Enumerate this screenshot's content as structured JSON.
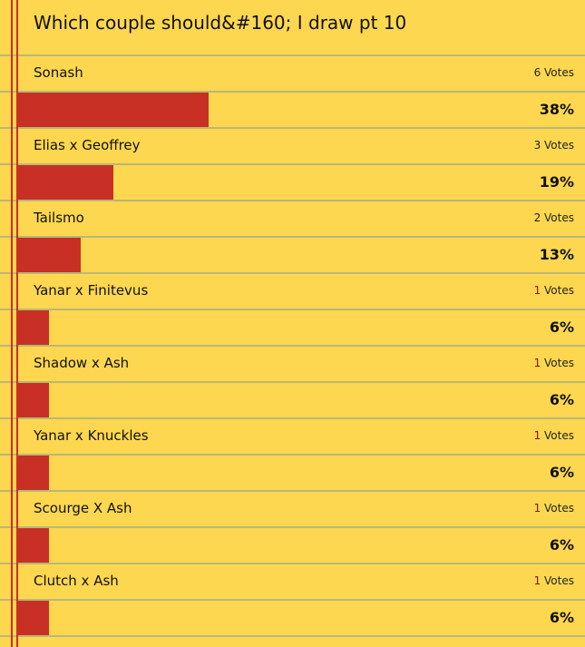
{
  "poll": {
    "title": "Which couple should&#160; I draw pt 10",
    "votes_suffix": "Votes",
    "options": [
      {
        "label": "Sonash",
        "votes": "6",
        "percent": "38%",
        "fraction": 0.375
      },
      {
        "label": "Elias x Geoffrey",
        "votes": "3",
        "percent": "19%",
        "fraction": 0.1875
      },
      {
        "label": "Tailsmo",
        "votes": "2",
        "percent": "13%",
        "fraction": 0.125
      },
      {
        "label": "Yanar x Finitevus",
        "votes": "1",
        "percent": "6%",
        "fraction": 0.0625
      },
      {
        "label": "Shadow x Ash",
        "votes": "1",
        "percent": "6%",
        "fraction": 0.0625
      },
      {
        "label": "Yanar x Knuckles",
        "votes": "1",
        "percent": "6%",
        "fraction": 0.0625
      },
      {
        "label": "Scourge X Ash",
        "votes": "1",
        "percent": "6%",
        "fraction": 0.0625
      },
      {
        "label": "Clutch x Ash",
        "votes": "1",
        "percent": "6%",
        "fraction": 0.0625
      }
    ]
  },
  "colors": {
    "background": "#fdd74f",
    "bar": "#c83026",
    "rule": "#b8b878"
  }
}
